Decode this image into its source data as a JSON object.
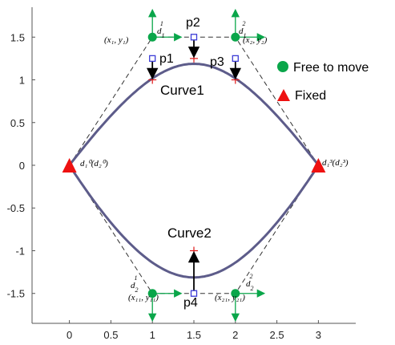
{
  "chart_data": {
    "type": "line",
    "xlim": [
      -0.45,
      3.45
    ],
    "ylim": [
      -1.85,
      1.85
    ],
    "xticks": [
      "0",
      "0.5",
      "1",
      "1.5",
      "2",
      "2.5",
      "3"
    ],
    "xtick_values": [
      0,
      0.5,
      1,
      1.5,
      2,
      2.5,
      3
    ],
    "yticks": [
      "1.5",
      "1",
      "0.5",
      "0",
      "-0.5",
      "-1",
      "-1.5"
    ],
    "ytick_values": [
      1.5,
      1,
      0.5,
      0,
      -0.5,
      -1,
      -1.5
    ],
    "grid": false,
    "curves": [
      {
        "name": "Curve1",
        "ctrl": [
          [
            0,
            0
          ],
          [
            1,
            1.25
          ],
          [
            1.5,
            1.5
          ],
          [
            2,
            1.25
          ],
          [
            3,
            0
          ]
        ]
      },
      {
        "name": "Curve2",
        "ctrl": [
          [
            0,
            0
          ],
          [
            1,
            -1.5
          ],
          [
            1.5,
            -1.5
          ],
          [
            2,
            -1.5
          ],
          [
            3,
            0
          ]
        ]
      }
    ],
    "control_polygon_top": [
      [
        0,
        0
      ],
      [
        1,
        1.5
      ],
      [
        2,
        1.5
      ],
      [
        3,
        0
      ]
    ],
    "control_polygon_bottom": [
      [
        0,
        0
      ],
      [
        1,
        -1.5
      ],
      [
        2,
        -1.5
      ],
      [
        3,
        0
      ]
    ],
    "free_points": [
      [
        1,
        1.5
      ],
      [
        2,
        1.5
      ],
      [
        1,
        -1.5
      ],
      [
        2,
        -1.5
      ]
    ],
    "fixed_points": [
      [
        0,
        0
      ],
      [
        3,
        0
      ]
    ],
    "inner_points": [
      {
        "label": "p1",
        "xy": [
          1,
          1.25
        ]
      },
      {
        "label": "p2",
        "xy": [
          1.5,
          1.5
        ]
      },
      {
        "label": "p3",
        "xy": [
          2,
          1.25
        ]
      },
      {
        "label": "p4",
        "xy": [
          1.5,
          -1.5
        ]
      }
    ],
    "targets": [
      [
        1,
        1
      ],
      [
        1.5,
        1.25
      ],
      [
        2,
        1
      ],
      [
        1.5,
        -1
      ]
    ],
    "annotations": {
      "p1": "p1",
      "p2": "p2",
      "p3": "p3",
      "p4": "p4",
      "curve1": "Curve1",
      "curve2": "Curve2",
      "d1_1": "d",
      "d1_2": "d",
      "d2_1": "d",
      "d2_2": "d",
      "x1y1": "(x₁, y₁)",
      "x2y2": "(x₂, y₂)",
      "x11y11": "(x₁₁, y₁₁)",
      "x21y21": "(x₂₁, y₂₁)",
      "left_end": "d₁⁰(d₂⁰)",
      "right_end": "d₁³(d₂³)"
    },
    "legend": {
      "placement": "top-right",
      "items": [
        {
          "label": "Free to move",
          "marker": "circle",
          "color": "#0aa64a"
        },
        {
          "label": "Fixed",
          "marker": "triangle",
          "color": "#ee1111"
        }
      ]
    },
    "colors": {
      "curve": "#5d5c8a",
      "polygon": "#333333",
      "free": "#0aa64a",
      "fixed": "#ee1111",
      "square": "#3b3bd6",
      "target": "#e01818",
      "arrow": "#000000",
      "axis": "#555555"
    }
  }
}
